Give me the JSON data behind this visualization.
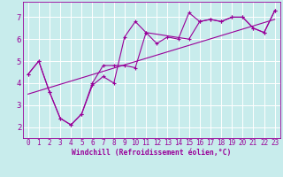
{
  "background_color": "#c8ecec",
  "line_color": "#990099",
  "grid_color": "#ffffff",
  "xlabel": "Windchill (Refroidissement éolien,°C)",
  "xlim": [
    -0.5,
    23.5
  ],
  "ylim": [
    1.5,
    7.7
  ],
  "xticks": [
    0,
    1,
    2,
    3,
    4,
    5,
    6,
    7,
    8,
    9,
    10,
    11,
    12,
    13,
    14,
    15,
    16,
    17,
    18,
    19,
    20,
    21,
    22,
    23
  ],
  "yticks": [
    2,
    3,
    4,
    5,
    6,
    7
  ],
  "series1": [
    [
      0,
      4.4
    ],
    [
      1,
      5.0
    ],
    [
      2,
      3.6
    ],
    [
      3,
      2.4
    ],
    [
      4,
      2.1
    ],
    [
      5,
      2.6
    ],
    [
      6,
      3.9
    ],
    [
      7,
      4.3
    ],
    [
      8,
      4.0
    ],
    [
      9,
      6.1
    ],
    [
      10,
      6.8
    ],
    [
      11,
      6.3
    ],
    [
      12,
      5.8
    ],
    [
      13,
      6.1
    ],
    [
      14,
      6.0
    ],
    [
      15,
      7.2
    ],
    [
      16,
      6.8
    ],
    [
      17,
      6.9
    ],
    [
      18,
      6.8
    ],
    [
      19,
      7.0
    ],
    [
      20,
      7.0
    ],
    [
      21,
      6.5
    ],
    [
      22,
      6.3
    ],
    [
      23,
      7.3
    ]
  ],
  "series2": [
    [
      0,
      4.4
    ],
    [
      1,
      5.0
    ],
    [
      2,
      3.6
    ],
    [
      3,
      2.4
    ],
    [
      4,
      2.1
    ],
    [
      5,
      2.6
    ],
    [
      6,
      4.0
    ],
    [
      7,
      4.8
    ],
    [
      8,
      4.8
    ],
    [
      9,
      4.8
    ],
    [
      10,
      4.7
    ],
    [
      11,
      6.3
    ],
    [
      15,
      6.0
    ],
    [
      16,
      6.8
    ],
    [
      17,
      6.9
    ],
    [
      18,
      6.8
    ],
    [
      19,
      7.0
    ],
    [
      20,
      7.0
    ],
    [
      21,
      6.5
    ],
    [
      22,
      6.3
    ],
    [
      23,
      7.3
    ]
  ],
  "trend_x": [
    0,
    23
  ],
  "trend_y": [
    3.5,
    6.9
  ],
  "marker_size": 2.5,
  "linewidth": 0.8,
  "tick_fontsize": 5.5,
  "xlabel_fontsize": 5.8
}
